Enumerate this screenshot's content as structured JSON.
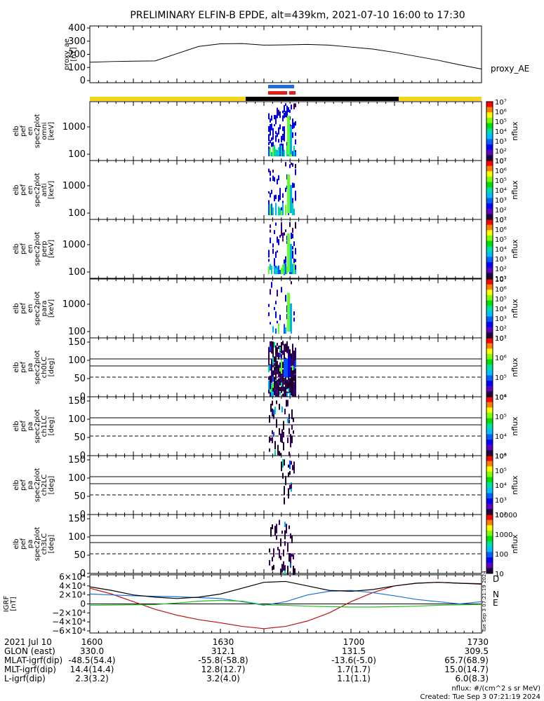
{
  "title": "PRELIMINARY ELFIN-B EPDE, alt=439km, 2021-07-10 16:00 to 17:30",
  "colors": {
    "yellow": "#f5d41a",
    "black": "#000000",
    "blue": "#1a6fe0",
    "red": "#e0201a",
    "green": "#20c020",
    "dark_red": "#c01010"
  },
  "chart_data": [
    {
      "type": "line",
      "name": "proxy_ae",
      "ylabel": [
        "proxy_ae",
        "[nT]"
      ],
      "ylim": [
        0,
        400
      ],
      "yticks": [
        "400",
        "300",
        "200",
        "100",
        "0"
      ],
      "legend": "proxy_AE",
      "x": [
        0,
        5,
        10,
        15,
        20,
        25,
        30,
        35,
        40,
        45,
        50,
        55,
        60,
        65,
        70,
        75,
        80,
        85,
        90
      ],
      "values": [
        140,
        145,
        148,
        150,
        205,
        260,
        280,
        282,
        270,
        272,
        275,
        270,
        255,
        240,
        215,
        185,
        155,
        120,
        88
      ]
    },
    {
      "type": "heatmap",
      "name": "omni",
      "ylabel": [
        "elb",
        "pef",
        "en",
        "spec2plot",
        "omni",
        "[keV]"
      ],
      "yticks": [
        "1000",
        "100"
      ],
      "cbar_label": "nflux",
      "cbar_ticks": [
        "10⁷",
        "10⁶",
        "10⁵",
        "10⁴",
        "10³",
        "10²",
        "10¹"
      ]
    },
    {
      "type": "heatmap",
      "name": "anti",
      "ylabel": [
        "elb",
        "pef",
        "en",
        "spec2plot",
        "anti",
        "[keV]"
      ],
      "yticks": [
        "1000",
        "100"
      ],
      "cbar_label": "nflux",
      "cbar_ticks": [
        "10⁷",
        "10⁶",
        "10⁵",
        "10⁴",
        "10³",
        "10²",
        "10¹"
      ]
    },
    {
      "type": "heatmap",
      "name": "perp",
      "ylabel": [
        "elb",
        "pef",
        "en",
        "spec2plot",
        "perp",
        "[keV]"
      ],
      "yticks": [
        "1000",
        "100"
      ],
      "cbar_label": "nflux",
      "cbar_ticks": [
        "10⁷",
        "10⁶",
        "10⁵",
        "10⁴",
        "10³",
        "10²",
        "10¹"
      ]
    },
    {
      "type": "heatmap",
      "name": "para",
      "ylabel": [
        "elb",
        "pef",
        "en",
        "spec2plot",
        "para",
        "[keV]"
      ],
      "yticks": [
        "1000",
        "100"
      ],
      "cbar_label": "nflux",
      "cbar_ticks": [
        "10⁷",
        "10⁶",
        "10⁵",
        "10⁴",
        "10³",
        "10²",
        "10¹"
      ]
    },
    {
      "type": "heatmap",
      "name": "ch0LC",
      "ylabel": [
        "elb",
        "pef",
        "pa",
        "spec2plot",
        "ch0LC",
        "[deg]"
      ],
      "yticks": [
        "150",
        "100",
        "50",
        "0"
      ],
      "cbar_label": "nflux",
      "cbar_ticks": [
        "10⁷",
        "10⁶",
        "10⁵",
        "10⁴"
      ]
    },
    {
      "type": "heatmap",
      "name": "ch1LC",
      "ylabel": [
        "elb",
        "pef",
        "pa",
        "spec2plot",
        "ch1LC",
        "[deg]"
      ],
      "yticks": [
        "150",
        "100",
        "50",
        "0"
      ],
      "cbar_label": "nflux",
      "cbar_ticks": [
        "10⁶",
        "10⁵",
        "10⁴",
        "10³"
      ]
    },
    {
      "type": "heatmap",
      "name": "ch2LC",
      "ylabel": [
        "elb",
        "pef",
        "pa",
        "spec2plot",
        "ch2LC",
        "[deg]"
      ],
      "yticks": [
        "150",
        "100",
        "50",
        "0"
      ],
      "cbar_label": "nflux",
      "cbar_ticks": [
        "10⁶",
        "10⁵",
        "10⁴",
        "10³",
        "10²"
      ]
    },
    {
      "type": "heatmap",
      "name": "ch3LC",
      "ylabel": [
        "elb",
        "pef",
        "pa",
        "spec2plot",
        "ch3LC",
        "[deg]"
      ],
      "yticks": [
        "150",
        "100",
        "50",
        "0"
      ],
      "cbar_label": "nflux",
      "cbar_ticks": [
        "10000",
        "1000",
        "100",
        "10"
      ]
    },
    {
      "type": "line",
      "name": "IGRF",
      "ylabel": [
        "IGRF",
        "[nT]"
      ],
      "ylim": [
        -60000,
        60000
      ],
      "yticks": [
        "6×10⁴",
        "4×10⁴",
        "2×10⁴",
        "0",
        "−2×10⁴",
        "−4×10⁴",
        "−6×10⁴"
      ],
      "x": [
        0,
        5,
        10,
        15,
        20,
        25,
        30,
        35,
        40,
        45,
        50,
        55,
        60,
        65,
        70,
        75,
        80,
        85,
        90
      ],
      "series": [
        {
          "name": "D",
          "values": [
            35000,
            22000,
            5000,
            -12000,
            -25000,
            -35000,
            -42000,
            -50000,
            -55000,
            -50000,
            -38000,
            -20000,
            5000,
            25000,
            40000,
            46000,
            48000,
            46000,
            45000
          ]
        },
        {
          "name": "N",
          "values": [
            22000,
            20000,
            18000,
            17000,
            16000,
            14000,
            12000,
            5000,
            -3000,
            5000,
            20000,
            28000,
            30000,
            25000,
            18000,
            10000,
            5000,
            0,
            5000
          ]
        },
        {
          "name": "E",
          "values": [
            -3000,
            -2500,
            -2000,
            -1500,
            2000,
            6000,
            8000,
            6000,
            -2000,
            -3000,
            -5000,
            -6000,
            -7000,
            -7000,
            -6000,
            -5000,
            -3000,
            -2000,
            -1000
          ]
        },
        {
          "values": [
            38000,
            30000,
            20000,
            15000,
            12000,
            15000,
            22000,
            35000,
            48000,
            50000,
            40000,
            30000,
            28000,
            32000,
            40000,
            46000,
            48000,
            46000,
            44000
          ]
        }
      ],
      "legend": [
        "D",
        "N",
        "E"
      ]
    }
  ],
  "orbit_table": {
    "rows": [
      {
        "label": "2021 Jul 10",
        "values": [
          "1600",
          "1630",
          "1700",
          "1730"
        ]
      },
      {
        "label": "GLON (east)",
        "values": [
          "330.0",
          "312.1",
          "131.5",
          "309.5"
        ]
      },
      {
        "label": "MLAT-igrf(dip)",
        "values": [
          "-48.5(54.4)",
          "-55.8(-58.8)",
          "-13.6(-5.0)",
          "65.7(68.9)"
        ]
      },
      {
        "label": "MLT-igrf(dip)",
        "values": [
          "14.4(14.4)",
          "12.8(12.7)",
          "1.7(1.7)",
          "15.0(14.7)"
        ]
      },
      {
        "label": "L-igrf(dip)",
        "values": [
          "2.3(3.2)",
          "3.2(4.0)",
          "1.1(1.1)",
          "6.0(8.3)"
        ]
      }
    ]
  },
  "footer": {
    "units": "nflux: #/(cm^2 s sr MeV)",
    "created": "Created: Tue Sep  3 07:21:19 2024",
    "side_stamp": "Tue Sep  3 07:21:19 2024"
  }
}
